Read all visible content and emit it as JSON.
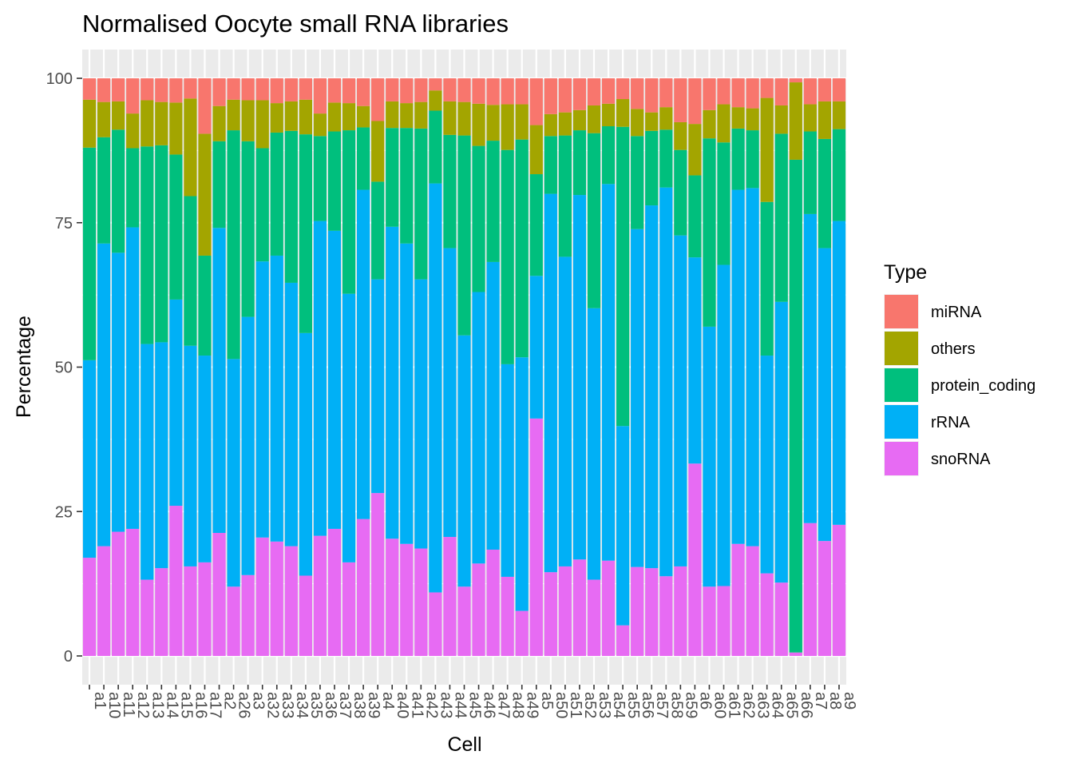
{
  "chart_data": {
    "type": "bar",
    "stacked": true,
    "title": "Normalised Oocyte small RNA libraries",
    "xlabel": "Cell",
    "ylabel": "Percentage",
    "ylim": [
      0,
      100
    ],
    "y_ticks": [
      0,
      25,
      50,
      75,
      100
    ],
    "grid": true,
    "background_color": "#EBEBEB",
    "gridline_color": "#FFFFFF",
    "legend_position": "right",
    "legend_title": "Type",
    "legend_entries": [
      "miRNA",
      "others",
      "protein_coding",
      "rRNA",
      "snoRNA"
    ],
    "stack_order_bottom_to_top": [
      "snoRNA",
      "rRNA",
      "protein_coding",
      "others",
      "miRNA"
    ],
    "categories": [
      "a1",
      "a10",
      "a11",
      "a12",
      "a13",
      "a14",
      "a15",
      "a16",
      "a17",
      "a2",
      "a26",
      "a3",
      "a32",
      "a33",
      "a34",
      "a35",
      "a36",
      "a37",
      "a38",
      "a39",
      "a4",
      "a40",
      "a41",
      "a42",
      "a43",
      "a44",
      "a45",
      "a46",
      "a47",
      "a48",
      "a49",
      "a5",
      "a50",
      "a51",
      "a52",
      "a53",
      "a54",
      "a55",
      "a56",
      "a57",
      "a58",
      "a59",
      "a6",
      "a60",
      "a61",
      "a62",
      "a63",
      "a64",
      "a65",
      "a66",
      "a7",
      "a8",
      "a9"
    ],
    "series": [
      {
        "name": "snoRNA",
        "color": "#E76BF3",
        "values": [
          17,
          19,
          21.5,
          22,
          13.2,
          15.2,
          26,
          15.5,
          16.2,
          21.3,
          12,
          14,
          20.5,
          19.8,
          19,
          13.9,
          20.8,
          22,
          16.2,
          23.7,
          28.2,
          20.3,
          19.4,
          18.6,
          11,
          20.6,
          12,
          16,
          18.4,
          13.7,
          7.8,
          41.1,
          14.5,
          15.5,
          16.7,
          13.2,
          16.5,
          5.3,
          15.4,
          15.2,
          13.8,
          15.5,
          33.3,
          12,
          12.1,
          19.4,
          19,
          14.3,
          12.7,
          0.6,
          23,
          19.9,
          22.7
        ]
      },
      {
        "name": "rRNA",
        "color": "#00B0F6",
        "values": [
          34.2,
          52.4,
          48.3,
          52.2,
          40.8,
          39.1,
          35.7,
          38.2,
          35.8,
          52.8,
          39.4,
          44.7,
          47.8,
          49.5,
          45.6,
          42,
          54.5,
          51.6,
          46.5,
          57,
          37,
          54,
          52,
          46.6,
          70.8,
          50,
          43.5,
          47,
          49.8,
          36.8,
          43.9,
          24.7,
          65.5,
          53.6,
          63.1,
          47,
          65.2,
          34.5,
          58.5,
          62.8,
          67.3,
          57.3,
          35.7,
          45,
          55.6,
          61.3,
          62,
          37.7,
          48.6,
          0,
          53.5,
          50.7,
          52.6
        ]
      },
      {
        "name": "protein_coding",
        "color": "#00BF7D",
        "values": [
          36.8,
          18.4,
          21.3,
          13.7,
          34.2,
          34.1,
          25.1,
          25.9,
          17.3,
          15,
          39.6,
          30.4,
          19.6,
          21.3,
          26.3,
          34.4,
          14.7,
          17.2,
          28.3,
          10.8,
          16.9,
          17.1,
          20,
          26.1,
          12.6,
          19.6,
          34.6,
          25.3,
          21,
          37.1,
          37.7,
          17.6,
          10,
          21,
          11.2,
          30.3,
          10,
          51.8,
          16.1,
          12.9,
          10,
          14.8,
          14.2,
          32.6,
          21.2,
          10.6,
          10,
          26.6,
          29.1,
          85.3,
          14.3,
          18.9,
          15.9
        ]
      },
      {
        "name": "others",
        "color": "#A3A500",
        "values": [
          8.3,
          6.1,
          4.9,
          6,
          8,
          7.5,
          9,
          16.9,
          21.1,
          6.1,
          5.3,
          7.1,
          8.3,
          5.1,
          5.1,
          6,
          3.9,
          5,
          4.7,
          3.7,
          10.5,
          4.6,
          4.3,
          4.6,
          3.5,
          5.8,
          5.8,
          7.3,
          6.2,
          7.9,
          6.1,
          8.5,
          3.8,
          4,
          3.5,
          4.8,
          3.9,
          4.8,
          4.7,
          3.2,
          3.9,
          4.8,
          8.9,
          4.9,
          6.6,
          3.7,
          3.8,
          18,
          4.9,
          13.4,
          4.7,
          6.5,
          4.8
        ]
      },
      {
        "name": "miRNA",
        "color": "#F8766D",
        "values": [
          3.7,
          4.1,
          4,
          6.1,
          3.8,
          4.1,
          4.2,
          3.5,
          9.6,
          4.8,
          3.7,
          3.8,
          3.8,
          4.3,
          4,
          3.7,
          6.1,
          4.2,
          4.3,
          4.8,
          7.4,
          4,
          4.3,
          4.1,
          2.1,
          4,
          4.1,
          4.4,
          4.6,
          4.5,
          4.5,
          8.1,
          6.2,
          5.9,
          5.5,
          4.7,
          4.4,
          3.6,
          5.3,
          5.9,
          5,
          7.6,
          7.9,
          5.5,
          4.5,
          5,
          5.2,
          3.4,
          4.7,
          0.7,
          4.5,
          4,
          4
        ]
      }
    ]
  }
}
